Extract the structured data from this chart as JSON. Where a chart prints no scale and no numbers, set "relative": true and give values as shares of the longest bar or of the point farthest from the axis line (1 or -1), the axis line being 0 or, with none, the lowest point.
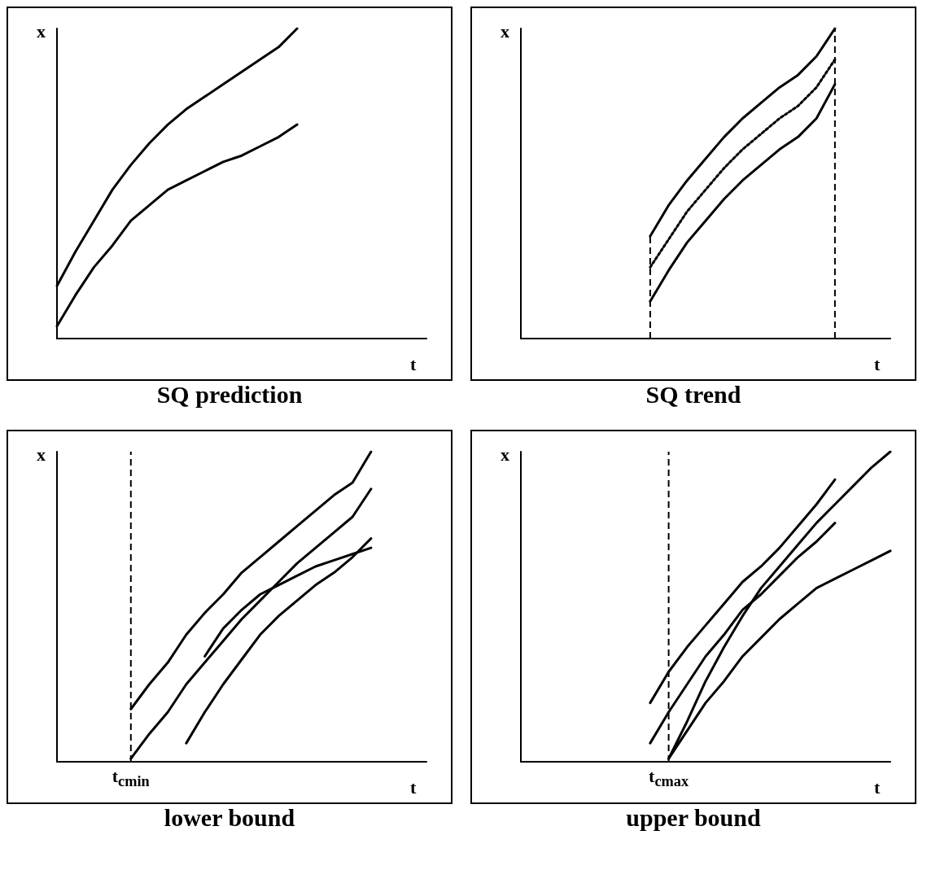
{
  "chart_data": [
    {
      "type": "line",
      "title": "SQ prediction",
      "xlabel": "t",
      "ylabel": "x",
      "relative": true,
      "categories": [
        null,
        null,
        null,
        null,
        null,
        null,
        null,
        null,
        null,
        null,
        null,
        null,
        null,
        null,
        null,
        null,
        null,
        null,
        null,
        null,
        null
      ],
      "series": [
        {
          "color": "#000000",
          "values": [
            0.17,
            0.28,
            0.38,
            0.48,
            0.56,
            0.63,
            0.69,
            0.74,
            0.78,
            0.82,
            0.86,
            0.9,
            0.94,
            1.0,
            null,
            null,
            null,
            null,
            null,
            null,
            null
          ]
        },
        {
          "color": "#000000",
          "values": [
            0.04,
            0.14,
            0.23,
            0.3,
            0.38,
            0.43,
            0.48,
            0.51,
            0.54,
            0.57,
            0.59,
            0.62,
            0.65,
            0.69,
            null,
            null,
            null,
            null,
            null,
            null,
            null
          ]
        }
      ]
    },
    {
      "type": "line",
      "title": "SQ trend",
      "xlabel": "t",
      "ylabel": "x",
      "relative": true,
      "categories": [
        null,
        null,
        null,
        null,
        null,
        null,
        null,
        null,
        null,
        null,
        null,
        null,
        null,
        null,
        null,
        null,
        null,
        null,
        null,
        null,
        null
      ],
      "series": [
        {
          "color": "#000000",
          "values": [
            null,
            null,
            null,
            null,
            null,
            null,
            null,
            0.33,
            0.43,
            0.51,
            0.58,
            0.65,
            0.71,
            0.76,
            0.81,
            0.85,
            0.91,
            1.0,
            null,
            null,
            null
          ]
        },
        {
          "color": "#000000",
          "values": [
            null,
            null,
            null,
            null,
            null,
            null,
            null,
            0.12,
            0.22,
            0.31,
            0.38,
            0.45,
            0.51,
            0.56,
            0.61,
            0.65,
            0.71,
            0.82,
            null,
            null,
            null
          ]
        },
        {
          "color": "#000000",
          "line_style": "dotted",
          "values": [
            null,
            null,
            null,
            null,
            null,
            null,
            null,
            0.23,
            0.32,
            0.41,
            0.48,
            0.55,
            0.61,
            0.66,
            0.71,
            0.75,
            0.81,
            0.9,
            null,
            null,
            null
          ]
        }
      ]
    },
    {
      "type": "line",
      "title": "lower bound",
      "xlabel": "t",
      "ylabel": "x",
      "relative": true,
      "categories": [
        null,
        null,
        null,
        null,
        null,
        null,
        null,
        null,
        null,
        null,
        null,
        null,
        null,
        null,
        null,
        null,
        null,
        null,
        null,
        null,
        null
      ],
      "annotations": [
        "t$_{cmin}$"
      ],
      "series": [
        {
          "color": "#000000",
          "values": [
            null,
            null,
            null,
            null,
            0.17,
            0.25,
            0.32,
            0.41,
            0.48,
            0.54,
            0.61,
            0.66,
            0.71,
            0.76,
            0.81,
            0.86,
            0.9,
            1.0,
            null,
            null,
            null
          ]
        },
        {
          "color": "#000000",
          "values": [
            null,
            null,
            null,
            null,
            0.01,
            0.09,
            0.16,
            0.25,
            0.32,
            0.39,
            0.46,
            0.52,
            0.58,
            0.64,
            0.69,
            0.74,
            0.79,
            0.88,
            null,
            null,
            null
          ]
        },
        {
          "color": "#000000",
          "values": [
            null,
            null,
            null,
            null,
            null,
            null,
            null,
            0.06,
            0.16,
            0.25,
            0.33,
            0.41,
            0.47,
            0.52,
            0.57,
            0.61,
            0.66,
            0.72,
            null,
            null,
            null
          ]
        },
        {
          "color": "#000000",
          "values": [
            null,
            null,
            null,
            null,
            null,
            null,
            null,
            null,
            0.34,
            0.43,
            0.49,
            0.54,
            0.57,
            0.6,
            0.63,
            0.65,
            0.67,
            0.69,
            null,
            null,
            null
          ]
        }
      ]
    },
    {
      "type": "line",
      "title": "upper bound",
      "xlabel": "t",
      "ylabel": "x",
      "relative": true,
      "categories": [
        null,
        null,
        null,
        null,
        null,
        null,
        null,
        null,
        null,
        null,
        null,
        null,
        null,
        null,
        null,
        null,
        null,
        null,
        null,
        null,
        null
      ],
      "annotations": [
        "t$_{cmax}$"
      ],
      "series": [
        {
          "color": "#000000",
          "values": [
            null,
            null,
            null,
            null,
            null,
            null,
            null,
            0.19,
            0.29,
            0.37,
            0.44,
            0.51,
            0.58,
            0.63,
            0.69,
            0.76,
            0.83,
            0.91,
            null,
            null,
            null
          ]
        },
        {
          "color": "#000000",
          "values": [
            null,
            null,
            null,
            null,
            null,
            null,
            null,
            0.06,
            0.16,
            0.25,
            0.34,
            0.41,
            0.49,
            0.54,
            0.6,
            0.66,
            0.71,
            0.77,
            null,
            null,
            null
          ]
        },
        {
          "color": "#000000",
          "values": [
            null,
            null,
            null,
            null,
            null,
            null,
            null,
            null,
            0.01,
            0.13,
            0.26,
            0.37,
            0.47,
            0.56,
            0.63,
            0.7,
            0.77,
            0.83,
            0.89,
            0.95,
            1.0
          ]
        },
        {
          "color": "#000000",
          "values": [
            null,
            null,
            null,
            null,
            null,
            null,
            null,
            null,
            0.01,
            0.1,
            0.19,
            0.26,
            0.34,
            0.4,
            0.46,
            0.51,
            0.56,
            0.59,
            0.62,
            0.65,
            0.68
          ]
        }
      ]
    }
  ]
}
